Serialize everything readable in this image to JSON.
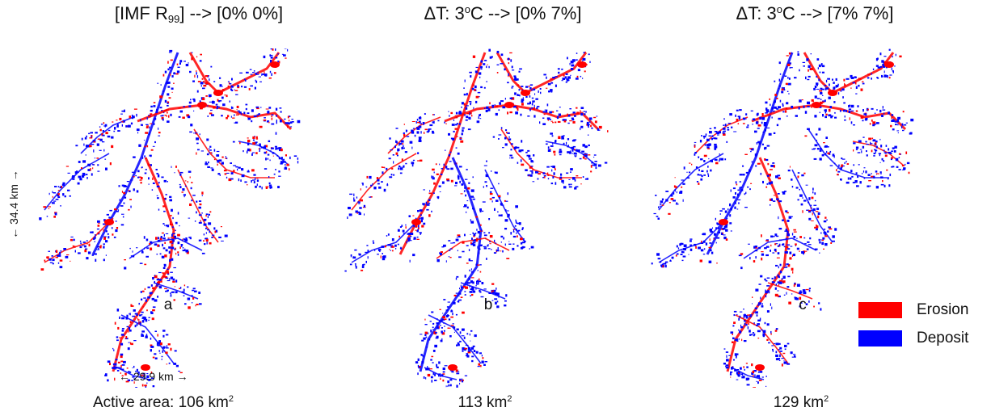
{
  "panels": [
    {
      "title_main": "[IMF R",
      "title_sub": "99",
      "title_tail": "] --> [0% 0%]",
      "letter": "a",
      "area_value": "Active area: 106 km",
      "area_sup": "2"
    },
    {
      "title_main": "ΔT: 3",
      "title_sup": "o",
      "title_tail": "C --> [0% 7%]",
      "letter": "b",
      "area_value": "113 km",
      "area_sup": "2"
    },
    {
      "title_main": "ΔT: 3",
      "title_sup": "o",
      "title_tail": "C --> [7% 7%]",
      "letter": "c",
      "area_value": "129 km",
      "area_sup": "2"
    }
  ],
  "scale": {
    "vertical": "← 34.4 km →",
    "horizontal": "← 29.9 km →"
  },
  "legend": [
    {
      "label": "Erosion",
      "color": "#ff0000"
    },
    {
      "label": "Deposit",
      "color": "#0000ff"
    }
  ]
}
